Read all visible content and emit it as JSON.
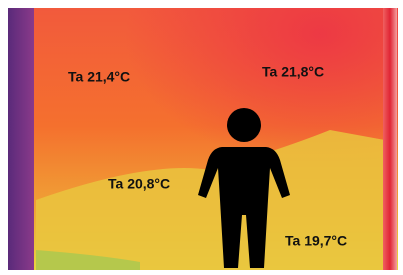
{
  "labels": [
    "Ta 21,4°C",
    "Ta 21,8°C",
    "Ta 20,8°C",
    "Ta 19,7°C"
  ]
}
